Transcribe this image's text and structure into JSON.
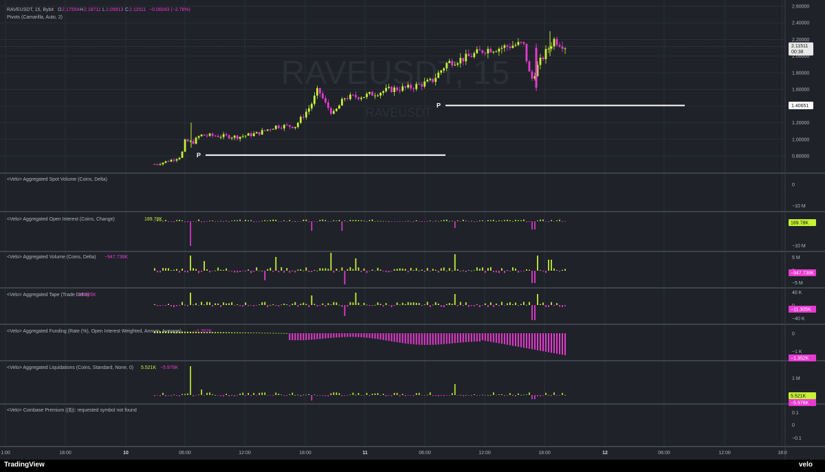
{
  "header": {
    "symbol": "RAVEUSDT, 15, Bybit",
    "o_label": "O",
    "o_value": "2.17554",
    "h_label": "H",
    "h_value": "2.18711",
    "l_label": "L",
    "l_value": "2.09913",
    "c_label": "C",
    "c_value": "2.11511",
    "change": "−0.06043 (−2.78%)",
    "pivots_label": "Pivots (Camarilla, Auto, 2)"
  },
  "watermark": {
    "main": "RAVEUSDT, 15",
    "sub": "RAVEUSDT"
  },
  "price_axis": {
    "ticks": [
      "2.60000",
      "2.40000",
      "2.20000",
      "2.00000",
      "1.80000",
      "1.60000",
      "1.40000",
      "1.20000",
      "1.00000",
      "0.80000"
    ],
    "last_price": "2.11511",
    "countdown": "00:38",
    "pivot_price": "1.40651"
  },
  "pivots": [
    {
      "label": "P",
      "value": 0.81,
      "from": 3.3,
      "to": 7.4
    },
    {
      "label": "P",
      "value": 1.40651,
      "from": 7.4,
      "to": 11.4
    }
  ],
  "time_axis": {
    "labels": [
      "1:00",
      "18:00",
      "10",
      "06:00",
      "12:00",
      "18:00",
      "11",
      "06:00",
      "12:00",
      "18:00",
      "12",
      "06:00",
      "12:00",
      "18:0"
    ]
  },
  "panes": [
    {
      "title": "<Velo> Aggregated Spot Volume (Coins, Delta)",
      "ticks": [
        "0",
        "−10 M"
      ],
      "badges": []
    },
    {
      "title": "<Velo> Aggregated Open Interest (Coins, Change)",
      "value": "189.78K",
      "ticks": [
        "−10 M"
      ],
      "badges": [
        "189.78K"
      ]
    },
    {
      "title": "<Velo> Aggregated Volume (Coins, Delta)",
      "value": "−947.738K",
      "ticks": [
        "5 M",
        "0",
        "−5 M"
      ],
      "badges": [
        "−947.738K"
      ]
    },
    {
      "title": "<Velo> Aggregated Tape (Trade Delta)",
      "value": "−11.305K",
      "ticks": [
        "40 K",
        "0",
        "−40 K"
      ],
      "badges": [
        "−11.305K"
      ]
    },
    {
      "title": "<Velo> Aggregated Funding (Rate (%), Open Interest Weighted, Annum, Average)",
      "value": "−1.352K",
      "ticks": [
        "0",
        "−1 K"
      ],
      "badges": [
        "−1.352K"
      ]
    },
    {
      "title": "<Velo> Aggregated Liquidations (Coins, Standard, None, 0)",
      "value": "5.521K",
      "value2": "−5.976K",
      "ticks": [
        "1 M",
        "0"
      ],
      "badges": [
        "5.521K",
        "−5.976K"
      ]
    },
    {
      "title": "<Velo> Coinbase Premium (($)): requested symbol not found",
      "ticks": [
        "0.1",
        "0",
        "−0.1"
      ],
      "badges": []
    }
  ],
  "footer": {
    "tradingview": "TradingView",
    "velo": "velo"
  },
  "colors": {
    "up": "#c6f135",
    "down": "#e63ad0",
    "bg": "#1f2229",
    "grid": "#2a2e36",
    "text": "#b2b5be"
  },
  "chart_data": {
    "type": "line",
    "title": "RAVEUSDT, 15, Bybit",
    "x_unit": "hours",
    "ylim": [
      0.7,
      2.65
    ],
    "grid": true,
    "price_path": [
      [
        0,
        0.69
      ],
      [
        2.3,
        0.7
      ],
      [
        2.5,
        0.72
      ],
      [
        2.8,
        0.76
      ],
      [
        3.0,
        0.8
      ],
      [
        3.1,
        0.98
      ],
      [
        3.3,
        0.96
      ],
      [
        3.5,
        1.05
      ],
      [
        4.0,
        1.04
      ],
      [
        4.5,
        1.03
      ],
      [
        5.0,
        1.07
      ],
      [
        5.5,
        1.16
      ],
      [
        6.0,
        1.16
      ],
      [
        6.4,
        1.4
      ],
      [
        6.6,
        1.6
      ],
      [
        6.8,
        1.42
      ],
      [
        7.0,
        1.3
      ],
      [
        7.3,
        1.5
      ],
      [
        7.8,
        1.52
      ],
      [
        8.5,
        1.6
      ],
      [
        9.0,
        1.62
      ],
      [
        9.6,
        1.7
      ],
      [
        10.0,
        1.92
      ],
      [
        10.5,
        1.98
      ],
      [
        11.0,
        2.08
      ],
      [
        11.4,
        2.1
      ],
      [
        11.6,
        2.12
      ],
      [
        12.0,
        2.15
      ],
      [
        12.2,
        1.7
      ],
      [
        12.4,
        1.9
      ],
      [
        12.6,
        2.05
      ],
      [
        12.8,
        2.2
      ],
      [
        13.1,
        2.12
      ]
    ],
    "last": 2.11511,
    "pivot_levels": [
      0.81,
      1.40651
    ]
  }
}
